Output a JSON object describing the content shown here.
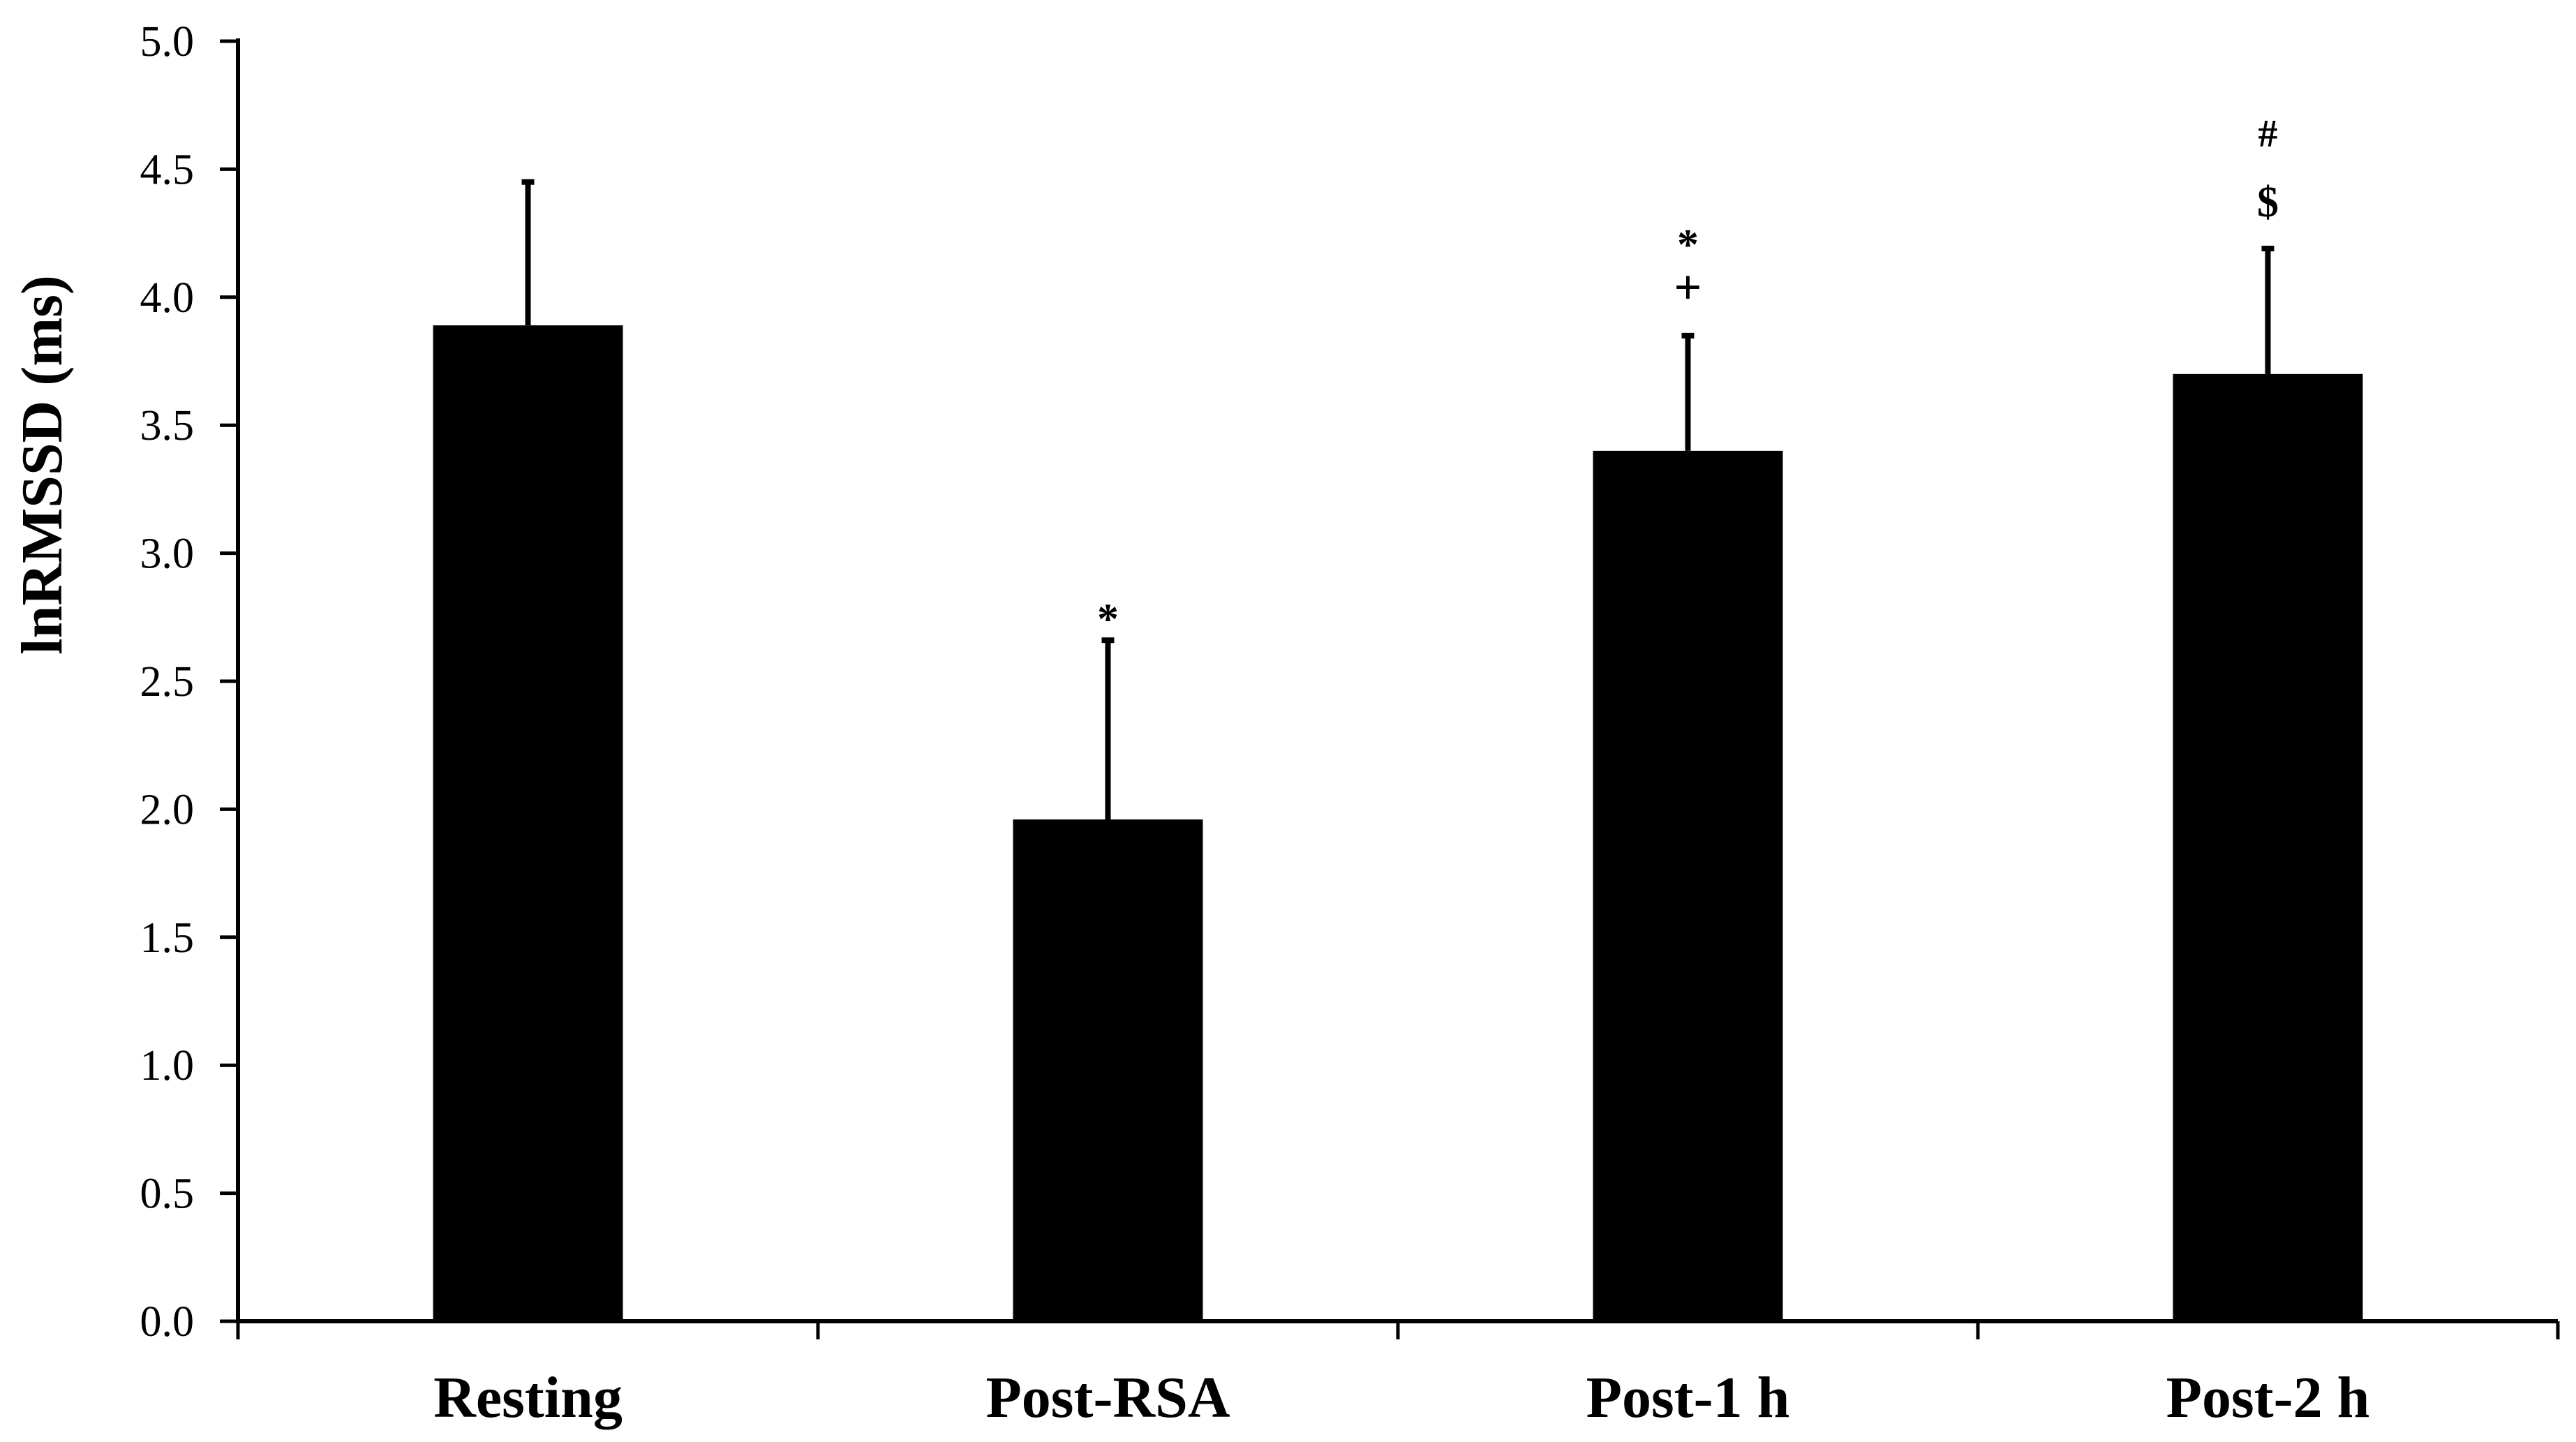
{
  "chart_data": {
    "type": "bar",
    "categories": [
      "Resting",
      "Post-RSA",
      "Post-1 h",
      "Post-2 h"
    ],
    "values": [
      3.89,
      1.96,
      3.4,
      3.7
    ],
    "errors": [
      0.56,
      0.7,
      0.45,
      0.49
    ],
    "annotations": [
      [],
      [
        "*"
      ],
      [
        "*",
        "+"
      ],
      [
        "#",
        "$"
      ]
    ],
    "ylabel": "lnRMSSD (ms)",
    "xlabel": "",
    "ylim": [
      0,
      5
    ],
    "yticks": [
      "0.0",
      "0.5",
      "1.0",
      "1.5",
      "2.0",
      "2.5",
      "3.0",
      "3.5",
      "4.0",
      "4.5",
      "5.0"
    ],
    "bar_color": "#000000",
    "grid": false
  }
}
